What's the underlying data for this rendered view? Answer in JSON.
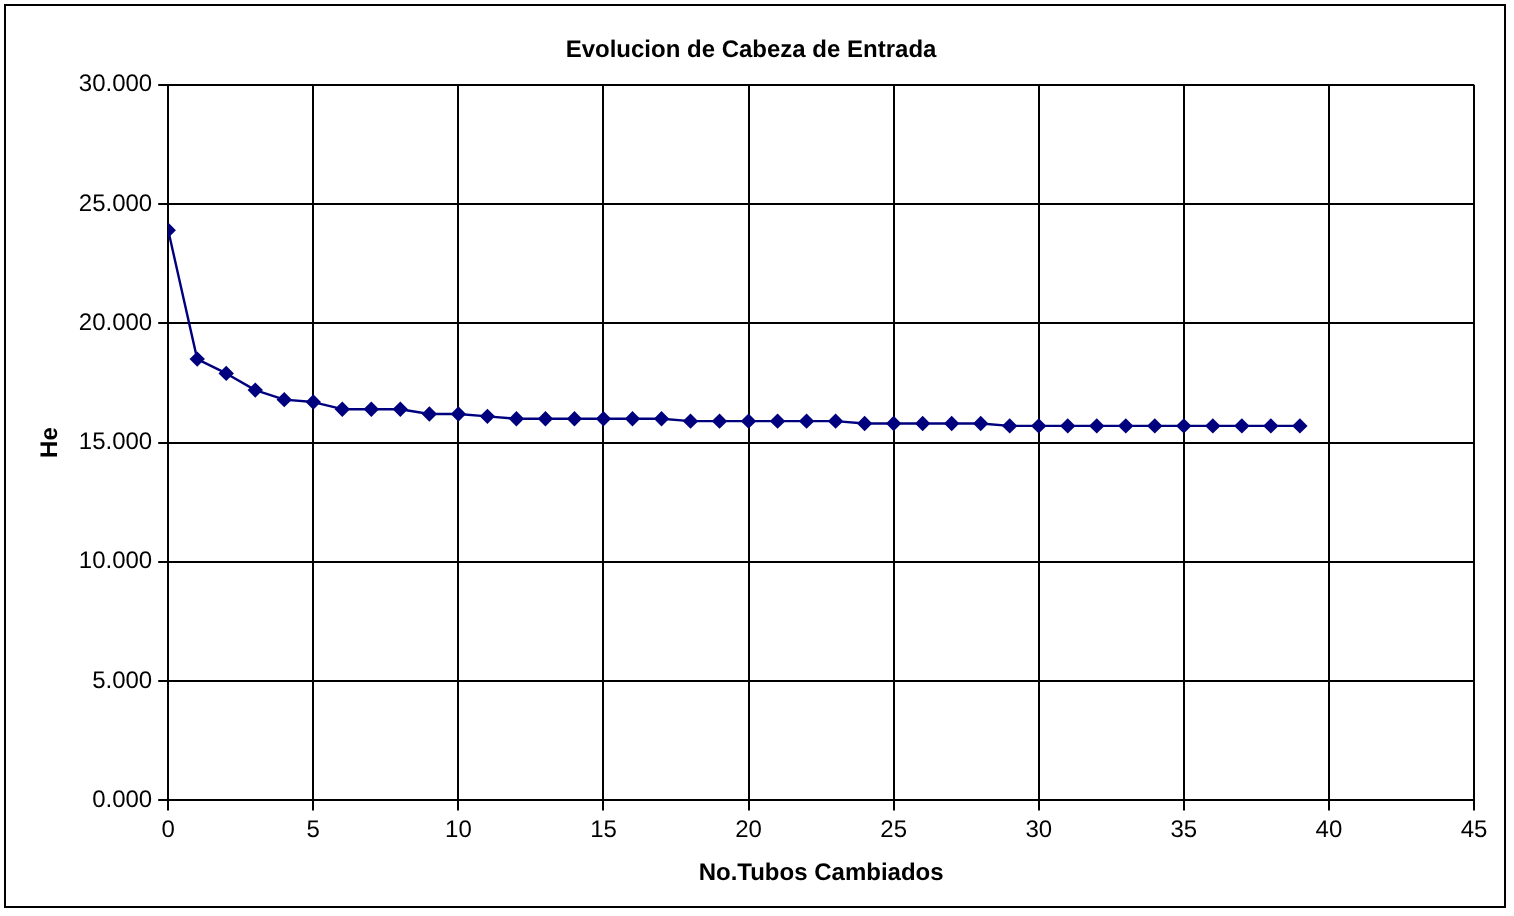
{
  "chart_data": {
    "type": "line",
    "title": "Evolucion de Cabeza de Entrada",
    "xlabel": "No.Tubos Cambiados",
    "ylabel": "He",
    "x": [
      0,
      1,
      2,
      3,
      4,
      5,
      6,
      7,
      8,
      9,
      10,
      11,
      12,
      13,
      14,
      15,
      16,
      17,
      18,
      19,
      20,
      21,
      22,
      23,
      24,
      25,
      26,
      27,
      28,
      29,
      30,
      31,
      32,
      33,
      34,
      35,
      36,
      37,
      38,
      39
    ],
    "series": [
      {
        "color": "#00007f",
        "values": [
          23.9,
          18.5,
          17.9,
          17.2,
          16.8,
          16.7,
          16.4,
          16.4,
          16.4,
          16.2,
          16.2,
          16.1,
          16.0,
          16.0,
          16.0,
          16.0,
          16.0,
          16.0,
          15.9,
          15.9,
          15.9,
          15.9,
          15.9,
          15.9,
          15.8,
          15.8,
          15.8,
          15.8,
          15.8,
          15.7,
          15.7,
          15.7,
          15.7,
          15.7,
          15.7,
          15.7,
          15.7,
          15.7,
          15.7,
          15.7
        ]
      }
    ],
    "xlim": [
      0,
      45
    ],
    "xticks": [
      0,
      5,
      10,
      15,
      20,
      25,
      30,
      35,
      40,
      45
    ],
    "ylim": [
      0,
      30
    ],
    "yticks": [
      {
        "value": 0,
        "label": "0.000"
      },
      {
        "value": 5,
        "label": "5.000"
      },
      {
        "value": 10,
        "label": "10.000"
      },
      {
        "value": 15,
        "label": "15.000"
      },
      {
        "value": 20,
        "label": "20.000"
      },
      {
        "value": 25,
        "label": "25.000"
      },
      {
        "value": 30,
        "label": "30.000"
      }
    ],
    "grid": true,
    "legend": false,
    "marker": "diamond",
    "line_style": "solid"
  }
}
